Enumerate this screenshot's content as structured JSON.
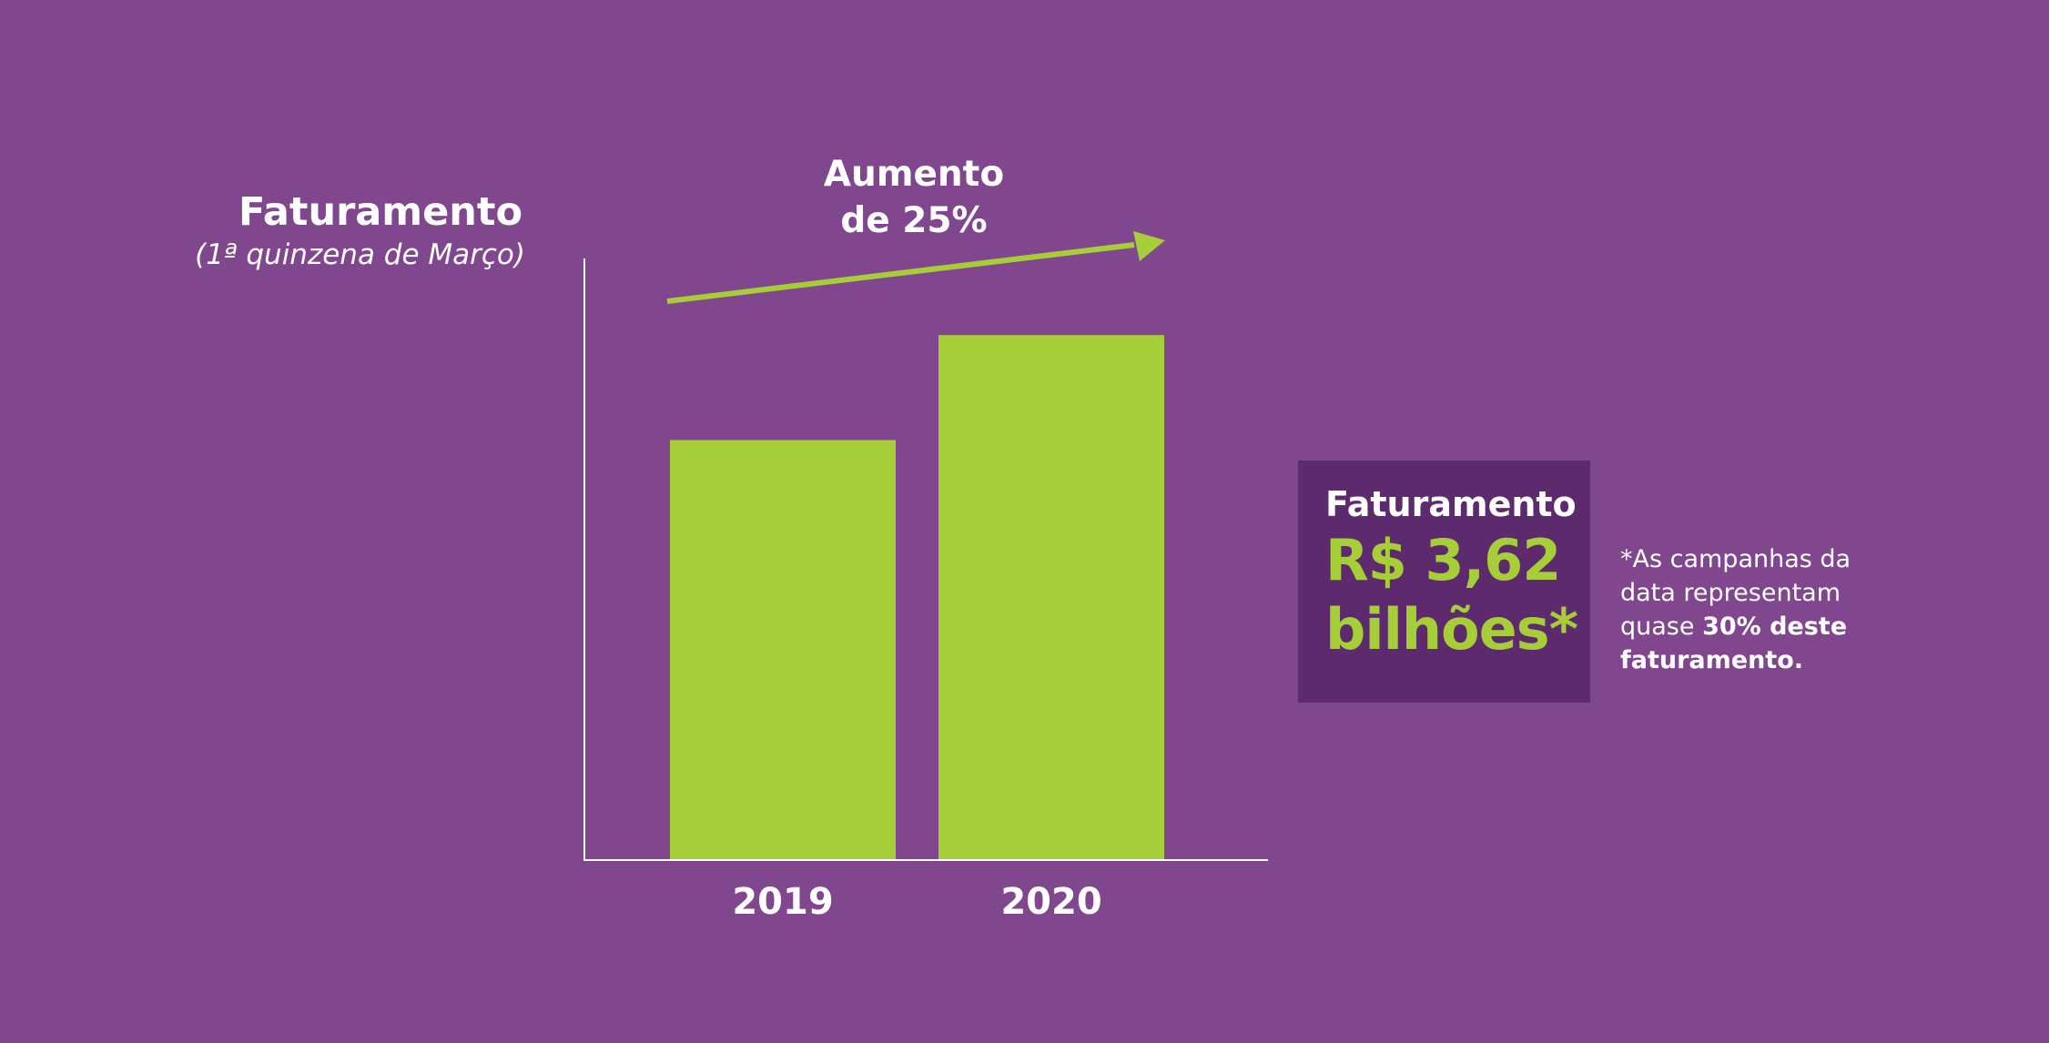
{
  "colors": {
    "background": "#80478e",
    "bar": "#a6ce39",
    "axis": "#ffffff",
    "text": "#ffffff",
    "accent": "#a6ce39",
    "box": "#5e2a6e"
  },
  "chart_data": {
    "type": "bar",
    "title": "Faturamento",
    "subtitle": "(1ª quinzena de Março)",
    "xlabel": "",
    "ylabel": "",
    "categories": [
      "2019",
      "2020"
    ],
    "values": [
      80,
      100
    ],
    "ylim": [
      0,
      112
    ],
    "grid": false,
    "legend": "none",
    "annotation": {
      "line1": "Aumento",
      "line2": "de 25%"
    }
  },
  "info_box": {
    "title": "Faturamento",
    "value_line1": "R$ 3,62",
    "value_line2": "bilhões*"
  },
  "footnote": {
    "line1": "*As campanhas da",
    "line2": "data representam",
    "line3_plain": "quase ",
    "line3_bold": "30% deste",
    "line4_bold": "faturamento."
  }
}
